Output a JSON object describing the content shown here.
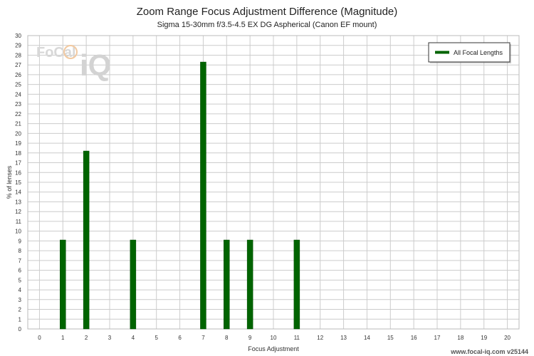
{
  "chart_data": {
    "type": "bar",
    "title": "Zoom Range Focus Adjustment Difference (Magnitude)",
    "subtitle": "Sigma 15-30mm f/3.5-4.5 EX DG Aspherical (Canon EF mount)",
    "xlabel": "Focus Adjustment",
    "ylabel": "% of lenses",
    "xlim": [
      -0.5,
      20.5
    ],
    "ylim": [
      0,
      30
    ],
    "x_ticks": [
      0,
      1,
      2,
      3,
      4,
      5,
      6,
      7,
      8,
      9,
      10,
      11,
      12,
      13,
      14,
      15,
      16,
      17,
      18,
      19,
      20
    ],
    "y_ticks": [
      0,
      1,
      2,
      3,
      4,
      5,
      6,
      7,
      8,
      9,
      10,
      11,
      12,
      13,
      14,
      15,
      16,
      17,
      18,
      19,
      20,
      21,
      22,
      23,
      24,
      25,
      26,
      27,
      28,
      29,
      30
    ],
    "grid": true,
    "legend_position": "top-right",
    "series": [
      {
        "name": "All Focal Lengths",
        "color": "#006400",
        "points": [
          {
            "x": 1,
            "y": 9.1
          },
          {
            "x": 2,
            "y": 18.2
          },
          {
            "x": 4,
            "y": 9.1
          },
          {
            "x": 7,
            "y": 27.3
          },
          {
            "x": 8,
            "y": 9.1
          },
          {
            "x": 9,
            "y": 9.1
          },
          {
            "x": 11,
            "y": 9.1
          }
        ]
      }
    ]
  },
  "watermark": {
    "logo_text": "FoCal iQ",
    "footer": "www.focal-iq.com  v25144"
  },
  "colors": {
    "bar": "#006400",
    "grid": "#cccccc",
    "axis_text": "#333333"
  }
}
